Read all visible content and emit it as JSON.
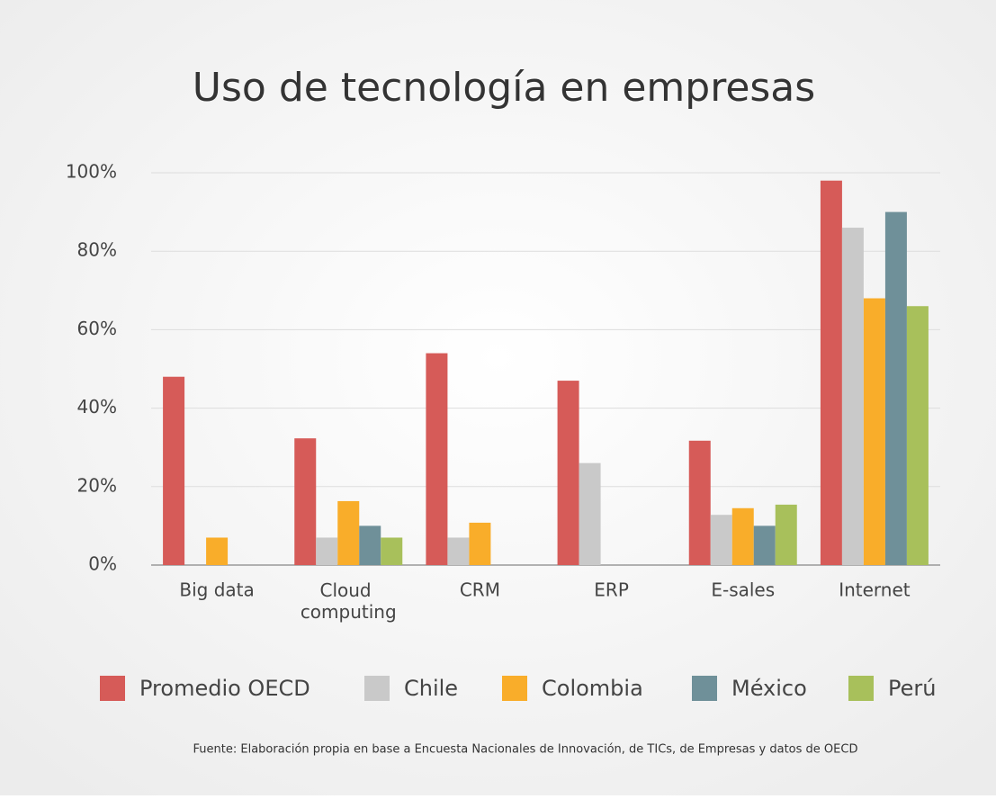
{
  "chart_data": {
    "type": "bar",
    "title": "Uso de tecnología en empresas",
    "categories": [
      "Big data",
      "Cloud computing",
      "CRM",
      "ERP",
      "E-sales",
      "Internet"
    ],
    "series": [
      {
        "name": "Promedio OECD",
        "color": "#d65b58",
        "values": [
          48,
          32.3,
          54,
          47,
          31.7,
          98
        ]
      },
      {
        "name": "Chile",
        "color": "#c9c9c9",
        "values": [
          null,
          7,
          7,
          26,
          12.8,
          86
        ]
      },
      {
        "name": "Colombia",
        "color": "#f9ad2a",
        "values": [
          7,
          16.3,
          10.8,
          null,
          14.5,
          68
        ]
      },
      {
        "name": "México",
        "color": "#6f9099",
        "values": [
          null,
          10,
          null,
          null,
          10,
          90
        ]
      },
      {
        "name": "Perú",
        "color": "#a8c05b",
        "values": [
          null,
          7,
          null,
          null,
          15.4,
          66
        ]
      }
    ],
    "ylim": [
      0,
      100
    ],
    "yticks": [
      {
        "value": 0,
        "label": "0%"
      },
      {
        "value": 20,
        "label": "20%"
      },
      {
        "value": 40,
        "label": "40%"
      },
      {
        "value": 60,
        "label": "60%"
      },
      {
        "value": 80,
        "label": "80%"
      },
      {
        "value": 100,
        "label": "100%"
      }
    ],
    "grid": true,
    "legend": "bottom",
    "source": "Fuente: Elaboración propia en base a Encuesta Nacionales de Innovación, de TICs, de Empresas y datos de OECD"
  }
}
